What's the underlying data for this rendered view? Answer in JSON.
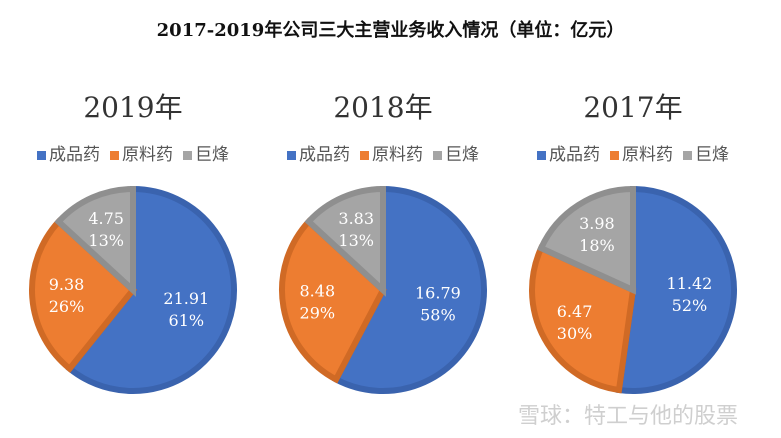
{
  "chart_data": {
    "title": "2017-2019年公司三大主营业务收入情况（单位：亿元）",
    "type": "pie",
    "legend": [
      "成品药",
      "原料药",
      "巨烽"
    ],
    "colors": [
      "#4472C4",
      "#ED7D31",
      "#A5A5A5"
    ],
    "border_colors": [
      "#3A63AE",
      "#D06A25",
      "#8F8F8F"
    ],
    "charts": [
      {
        "title": "2019年",
        "values": [
          21.91,
          9.38,
          4.75
        ],
        "labels": [
          "21.91",
          "9.38",
          "4.75"
        ],
        "percents": [
          "61%",
          "26%",
          "13%"
        ]
      },
      {
        "title": "2018年",
        "values": [
          16.79,
          8.48,
          3.83
        ],
        "labels": [
          "16.79",
          "8.48",
          "3.83"
        ],
        "percents": [
          "58%",
          "29%",
          "13%"
        ]
      },
      {
        "title": "2017年",
        "values": [
          11.42,
          6.47,
          3.98
        ],
        "labels": [
          "11.42",
          "6.47",
          "3.98"
        ],
        "percents": [
          "52%",
          "30%",
          "18%"
        ]
      }
    ],
    "legend_position": "top"
  },
  "watermark": "雪球：特工与他的股票"
}
